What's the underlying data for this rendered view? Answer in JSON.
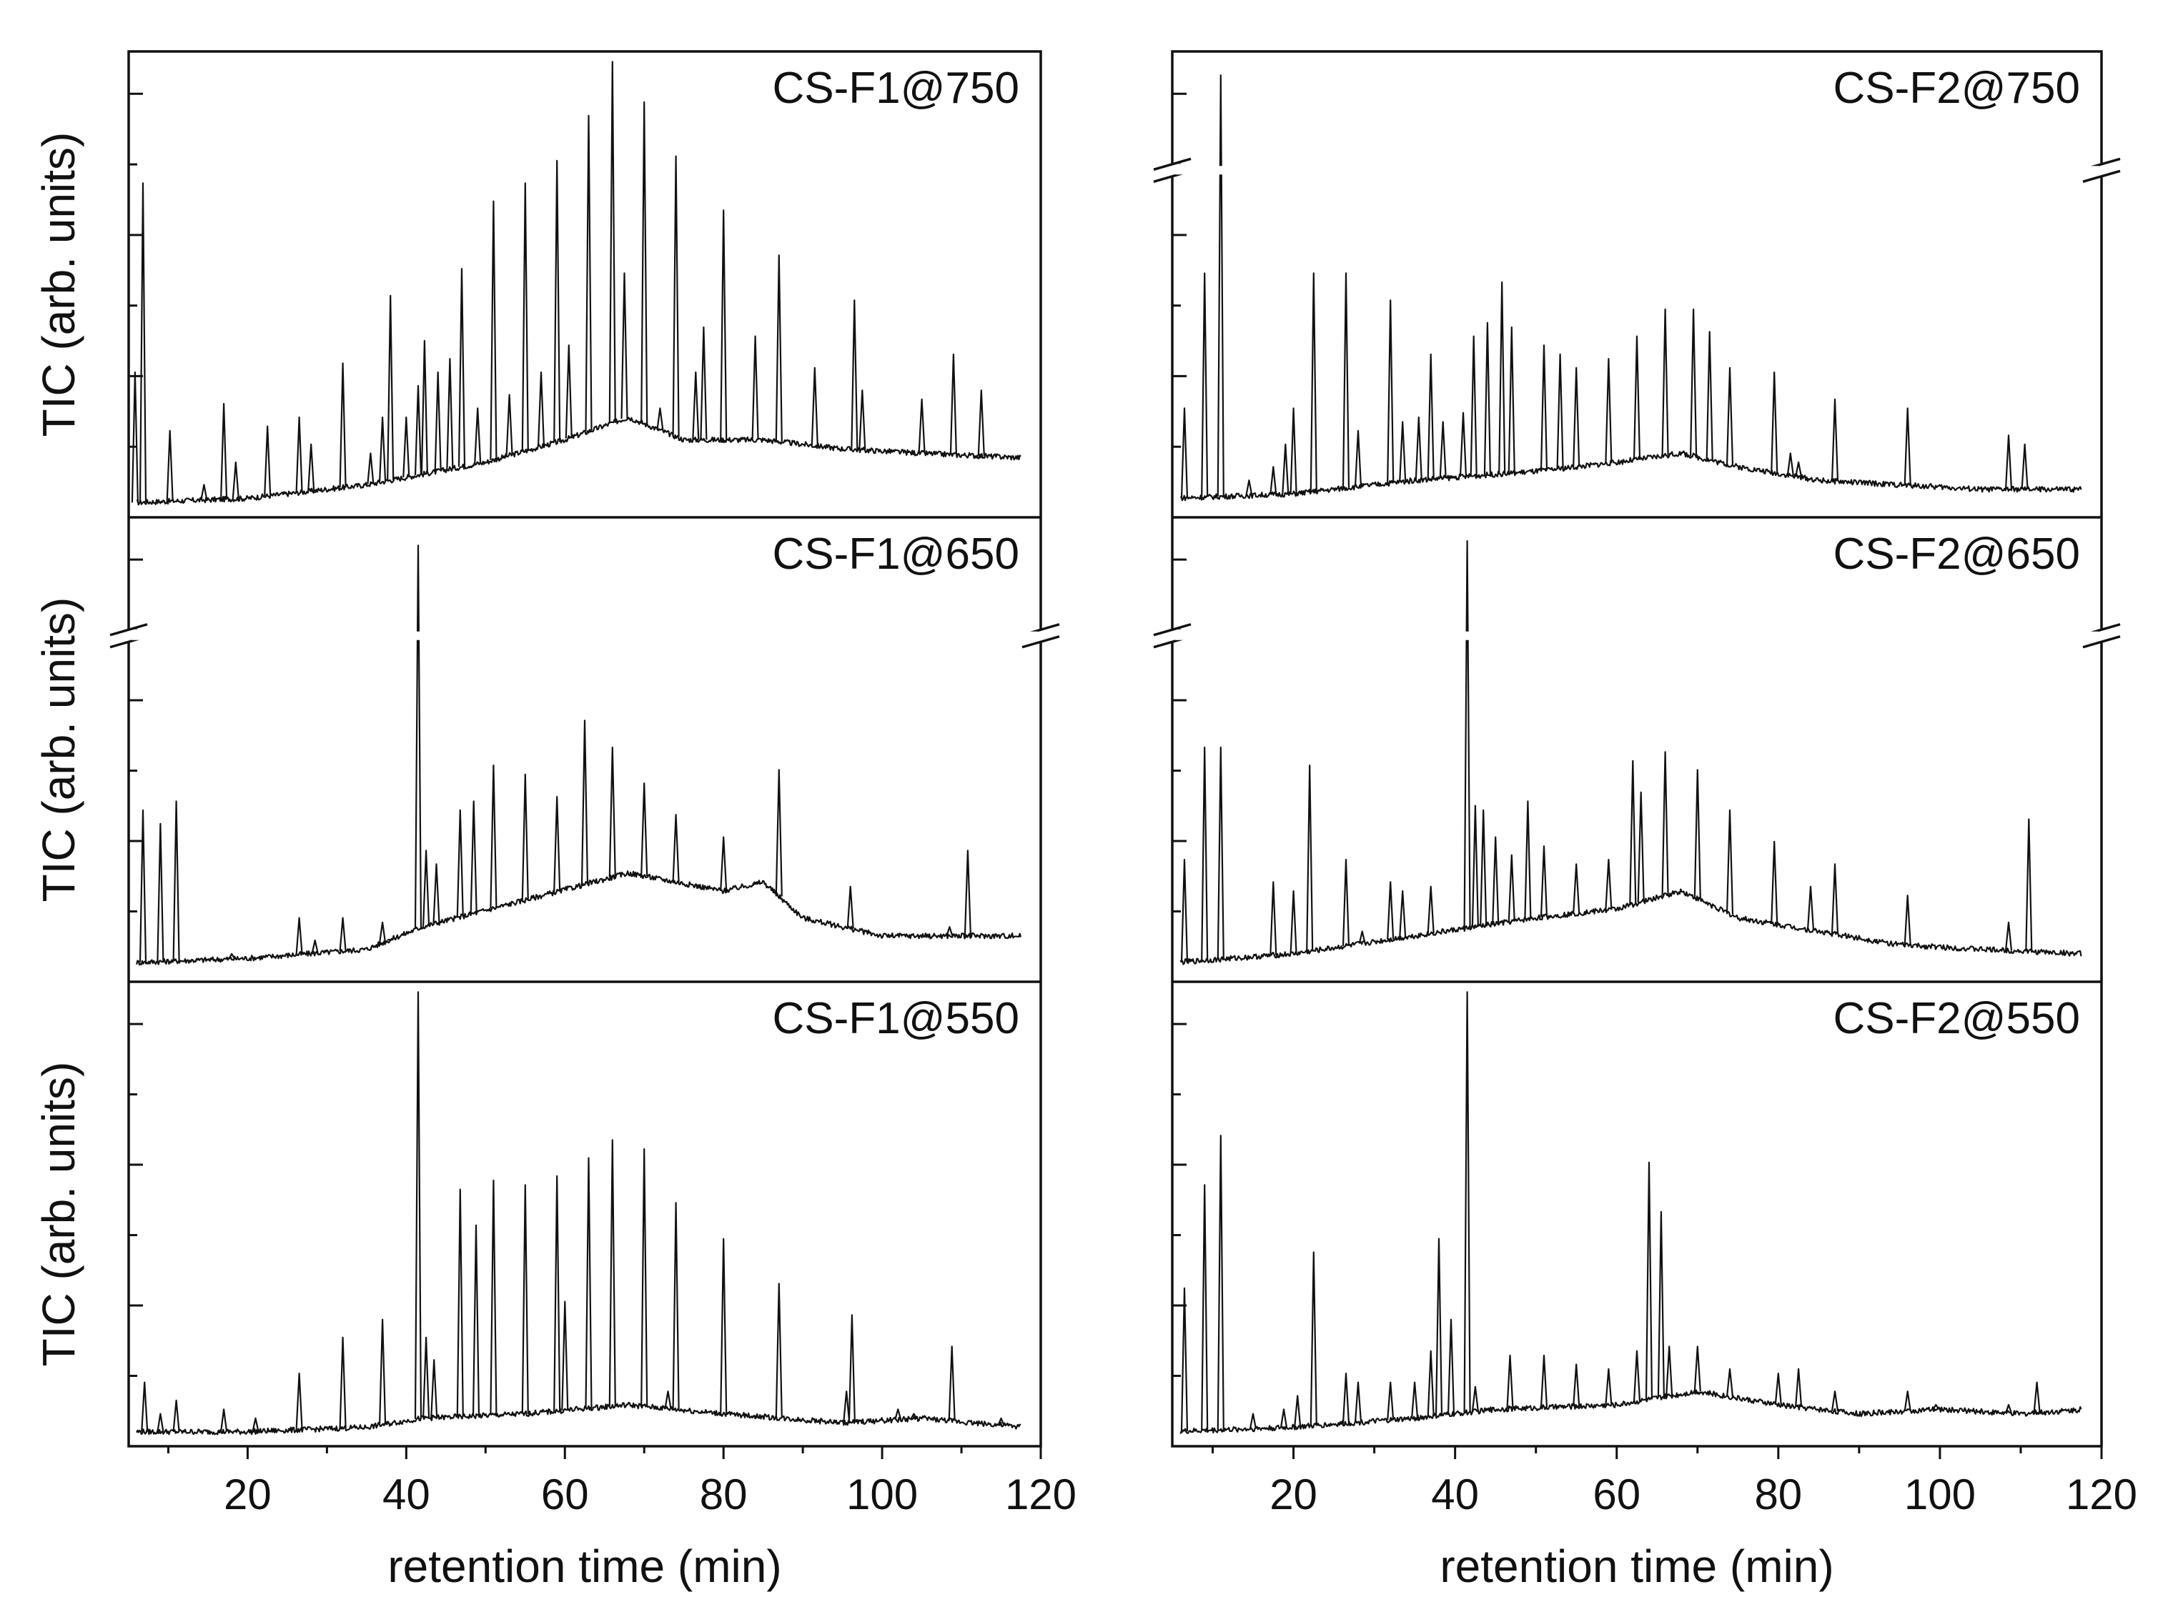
{
  "chart_data": [
    {
      "type": "line",
      "id": "cs-f1-750",
      "title": "CS-F1@750",
      "ylabel": "TIC (arb. units)",
      "xlabel": "retention time (min)",
      "xlim": [
        5,
        120
      ],
      "ylim": [
        0,
        1
      ],
      "xticks": [
        "20",
        "40",
        "60",
        "80",
        "100",
        "120"
      ],
      "axis_break": false,
      "baseline": [
        [
          5,
          0.01
        ],
        [
          20,
          0.02
        ],
        [
          35,
          0.05
        ],
        [
          50,
          0.1
        ],
        [
          60,
          0.15
        ],
        [
          68,
          0.2
        ],
        [
          75,
          0.15
        ],
        [
          85,
          0.15
        ],
        [
          95,
          0.13
        ],
        [
          105,
          0.12
        ],
        [
          118,
          0.11
        ]
      ],
      "peaks": [
        [
          5.8,
          0.3
        ],
        [
          6.8,
          0.72
        ],
        [
          10.2,
          0.17
        ],
        [
          14.5,
          0.05
        ],
        [
          17.0,
          0.23
        ],
        [
          18.5,
          0.1
        ],
        [
          22.5,
          0.18
        ],
        [
          26.5,
          0.2
        ],
        [
          28.0,
          0.14
        ],
        [
          32.0,
          0.32
        ],
        [
          35.5,
          0.12
        ],
        [
          37.0,
          0.2
        ],
        [
          38.0,
          0.47
        ],
        [
          40.0,
          0.2
        ],
        [
          41.5,
          0.27
        ],
        [
          42.3,
          0.37
        ],
        [
          44.0,
          0.3
        ],
        [
          45.5,
          0.33
        ],
        [
          47.0,
          0.53
        ],
        [
          49.0,
          0.22
        ],
        [
          51.0,
          0.68
        ],
        [
          53.0,
          0.25
        ],
        [
          55.0,
          0.72
        ],
        [
          57.0,
          0.3
        ],
        [
          59.0,
          0.77
        ],
        [
          60.5,
          0.36
        ],
        [
          63.0,
          0.87
        ],
        [
          66.0,
          0.99
        ],
        [
          67.5,
          0.52
        ],
        [
          70.0,
          0.9
        ],
        [
          72.0,
          0.22
        ],
        [
          74.0,
          0.78
        ],
        [
          76.5,
          0.3
        ],
        [
          77.5,
          0.4
        ],
        [
          80.0,
          0.66
        ],
        [
          84.0,
          0.38
        ],
        [
          87.0,
          0.56
        ],
        [
          91.5,
          0.31
        ],
        [
          96.5,
          0.46
        ],
        [
          97.5,
          0.26
        ],
        [
          105.0,
          0.24
        ],
        [
          109.0,
          0.34
        ],
        [
          112.5,
          0.26
        ]
      ]
    },
    {
      "type": "line",
      "id": "cs-f1-650",
      "title": "CS-F1@650",
      "ylabel": "TIC (arb. units)",
      "xlabel": "retention time (min)",
      "xlim": [
        5,
        120
      ],
      "ylim": [
        0,
        1
      ],
      "xticks": [
        "20",
        "40",
        "60",
        "80",
        "100",
        "120"
      ],
      "axis_break": true,
      "baseline": [
        [
          5,
          0.02
        ],
        [
          20,
          0.03
        ],
        [
          35,
          0.05
        ],
        [
          42,
          0.1
        ],
        [
          55,
          0.16
        ],
        [
          68,
          0.22
        ],
        [
          80,
          0.18
        ],
        [
          85,
          0.2
        ],
        [
          90,
          0.12
        ],
        [
          100,
          0.08
        ],
        [
          118,
          0.08
        ]
      ],
      "peaks": [
        [
          6.8,
          0.36
        ],
        [
          9.0,
          0.33
        ],
        [
          11.0,
          0.38
        ],
        [
          18.0,
          0.04
        ],
        [
          26.5,
          0.12
        ],
        [
          28.5,
          0.07
        ],
        [
          32.0,
          0.12
        ],
        [
          37.0,
          0.11
        ],
        [
          38.0,
          0.07
        ],
        [
          41.5,
          0.95
        ],
        [
          42.5,
          0.27
        ],
        [
          43.8,
          0.24
        ],
        [
          46.8,
          0.36
        ],
        [
          48.5,
          0.38
        ],
        [
          51.0,
          0.46
        ],
        [
          55.0,
          0.44
        ],
        [
          59.0,
          0.39
        ],
        [
          62.5,
          0.56
        ],
        [
          66.0,
          0.5
        ],
        [
          70.0,
          0.42
        ],
        [
          74.0,
          0.35
        ],
        [
          80.0,
          0.3
        ],
        [
          84.0,
          0.12
        ],
        [
          87.0,
          0.45
        ],
        [
          96.0,
          0.19
        ],
        [
          108.5,
          0.1
        ],
        [
          110.8,
          0.27
        ],
        [
          112.0,
          0.06
        ]
      ]
    },
    {
      "type": "line",
      "id": "cs-f1-550",
      "title": "CS-F1@550",
      "ylabel": "TIC (arb. units)",
      "xlabel": "retention time (min)",
      "xlim": [
        5,
        120
      ],
      "ylim": [
        0,
        1
      ],
      "xticks": [
        "20",
        "40",
        "60",
        "80",
        "100",
        "120"
      ],
      "axis_break": false,
      "baseline": [
        [
          5,
          0.01
        ],
        [
          20,
          0.01
        ],
        [
          35,
          0.02
        ],
        [
          42,
          0.04
        ],
        [
          55,
          0.05
        ],
        [
          68,
          0.07
        ],
        [
          80,
          0.05
        ],
        [
          95,
          0.03
        ],
        [
          105,
          0.04
        ],
        [
          118,
          0.02
        ]
      ],
      "peaks": [
        [
          7.0,
          0.12
        ],
        [
          9.0,
          0.05
        ],
        [
          11.0,
          0.08
        ],
        [
          17.0,
          0.06
        ],
        [
          21.0,
          0.04
        ],
        [
          26.5,
          0.14
        ],
        [
          32.0,
          0.22
        ],
        [
          37.0,
          0.26
        ],
        [
          41.5,
          0.99
        ],
        [
          42.5,
          0.22
        ],
        [
          43.5,
          0.17
        ],
        [
          46.8,
          0.55
        ],
        [
          48.8,
          0.47
        ],
        [
          51.0,
          0.57
        ],
        [
          55.0,
          0.56
        ],
        [
          59.0,
          0.58
        ],
        [
          60.0,
          0.3
        ],
        [
          63.0,
          0.62
        ],
        [
          66.0,
          0.66
        ],
        [
          70.0,
          0.64
        ],
        [
          73.0,
          0.1
        ],
        [
          74.0,
          0.52
        ],
        [
          80.0,
          0.44
        ],
        [
          84.0,
          0.04
        ],
        [
          87.0,
          0.34
        ],
        [
          95.5,
          0.1
        ],
        [
          96.2,
          0.27
        ],
        [
          102.0,
          0.06
        ],
        [
          104.0,
          0.05
        ],
        [
          108.8,
          0.2
        ],
        [
          115.0,
          0.04
        ]
      ]
    },
    {
      "type": "line",
      "id": "cs-f2-750",
      "title": "CS-F2@750",
      "ylabel": "TIC (arb. units)",
      "xlabel": "retention time (min)",
      "xlim": [
        5,
        120
      ],
      "ylim": [
        0,
        1
      ],
      "xticks": [
        "20",
        "40",
        "60",
        "80",
        "100",
        "120"
      ],
      "axis_break": true,
      "baseline": [
        [
          5,
          0.02
        ],
        [
          20,
          0.03
        ],
        [
          35,
          0.06
        ],
        [
          50,
          0.08
        ],
        [
          60,
          0.1
        ],
        [
          68,
          0.12
        ],
        [
          75,
          0.09
        ],
        [
          85,
          0.06
        ],
        [
          95,
          0.05
        ],
        [
          105,
          0.04
        ],
        [
          118,
          0.04
        ]
      ],
      "peaks": [
        [
          6.5,
          0.22
        ],
        [
          9.0,
          0.52
        ],
        [
          11.0,
          0.96
        ],
        [
          14.5,
          0.06
        ],
        [
          17.5,
          0.09
        ],
        [
          19.0,
          0.14
        ],
        [
          20.0,
          0.22
        ],
        [
          22.5,
          0.52
        ],
        [
          26.5,
          0.52
        ],
        [
          28.0,
          0.17
        ],
        [
          32.0,
          0.46
        ],
        [
          33.5,
          0.19
        ],
        [
          35.5,
          0.2
        ],
        [
          37.0,
          0.34
        ],
        [
          38.5,
          0.19
        ],
        [
          41.0,
          0.21
        ],
        [
          42.3,
          0.38
        ],
        [
          44.0,
          0.41
        ],
        [
          45.8,
          0.5
        ],
        [
          47.0,
          0.4
        ],
        [
          51.0,
          0.36
        ],
        [
          53.0,
          0.34
        ],
        [
          55.0,
          0.31
        ],
        [
          59.0,
          0.33
        ],
        [
          62.5,
          0.38
        ],
        [
          66.0,
          0.44
        ],
        [
          69.5,
          0.44
        ],
        [
          71.5,
          0.39
        ],
        [
          74.0,
          0.31
        ],
        [
          79.5,
          0.3
        ],
        [
          81.5,
          0.12
        ],
        [
          82.5,
          0.1
        ],
        [
          87.0,
          0.24
        ],
        [
          96.0,
          0.22
        ],
        [
          108.5,
          0.16
        ],
        [
          110.5,
          0.14
        ]
      ]
    },
    {
      "type": "line",
      "id": "cs-f2-650",
      "title": "CS-F2@650",
      "ylabel": "TIC (arb. units)",
      "xlabel": "retention time (min)",
      "xlim": [
        5,
        120
      ],
      "ylim": [
        0,
        1
      ],
      "xticks": [
        "20",
        "40",
        "60",
        "80",
        "100",
        "120"
      ],
      "axis_break": true,
      "baseline": [
        [
          5,
          0.02
        ],
        [
          20,
          0.04
        ],
        [
          35,
          0.08
        ],
        [
          50,
          0.12
        ],
        [
          60,
          0.14
        ],
        [
          68,
          0.18
        ],
        [
          75,
          0.12
        ],
        [
          85,
          0.09
        ],
        [
          95,
          0.06
        ],
        [
          105,
          0.05
        ],
        [
          118,
          0.04
        ]
      ],
      "peaks": [
        [
          6.5,
          0.25
        ],
        [
          9.0,
          0.5
        ],
        [
          11.0,
          0.5
        ],
        [
          17.5,
          0.2
        ],
        [
          20.0,
          0.18
        ],
        [
          22.0,
          0.46
        ],
        [
          26.5,
          0.25
        ],
        [
          28.5,
          0.09
        ],
        [
          32.0,
          0.2
        ],
        [
          33.5,
          0.18
        ],
        [
          37.0,
          0.19
        ],
        [
          41.5,
          0.96
        ],
        [
          42.5,
          0.37
        ],
        [
          43.5,
          0.36
        ],
        [
          45.0,
          0.3
        ],
        [
          47.0,
          0.26
        ],
        [
          49.0,
          0.38
        ],
        [
          51.0,
          0.28
        ],
        [
          55.0,
          0.24
        ],
        [
          59.0,
          0.25
        ],
        [
          62.0,
          0.47
        ],
        [
          63.0,
          0.4
        ],
        [
          66.0,
          0.49
        ],
        [
          70.0,
          0.45
        ],
        [
          74.0,
          0.36
        ],
        [
          79.5,
          0.29
        ],
        [
          84.0,
          0.19
        ],
        [
          87.0,
          0.24
        ],
        [
          96.0,
          0.17
        ],
        [
          108.5,
          0.11
        ],
        [
          111.0,
          0.34
        ]
      ]
    },
    {
      "type": "line",
      "id": "cs-f2-550",
      "title": "CS-F2@550",
      "ylabel": "TIC (arb. units)",
      "xlabel": "retention time (min)",
      "xlim": [
        5,
        120
      ],
      "ylim": [
        0,
        1
      ],
      "xticks": [
        "20",
        "40",
        "60",
        "80",
        "100",
        "120"
      ],
      "axis_break": false,
      "baseline": [
        [
          5,
          0.01
        ],
        [
          20,
          0.02
        ],
        [
          35,
          0.04
        ],
        [
          45,
          0.06
        ],
        [
          60,
          0.07
        ],
        [
          70,
          0.1
        ],
        [
          80,
          0.07
        ],
        [
          90,
          0.05
        ],
        [
          100,
          0.06
        ],
        [
          110,
          0.05
        ],
        [
          118,
          0.06
        ]
      ],
      "peaks": [
        [
          6.5,
          0.33
        ],
        [
          9.0,
          0.56
        ],
        [
          11.0,
          0.67
        ],
        [
          15.0,
          0.05
        ],
        [
          18.8,
          0.06
        ],
        [
          20.5,
          0.09
        ],
        [
          22.5,
          0.41
        ],
        [
          26.5,
          0.14
        ],
        [
          28.0,
          0.12
        ],
        [
          32.0,
          0.12
        ],
        [
          35.0,
          0.12
        ],
        [
          37.0,
          0.19
        ],
        [
          38.0,
          0.44
        ],
        [
          39.5,
          0.26
        ],
        [
          41.5,
          0.99
        ],
        [
          42.5,
          0.11
        ],
        [
          46.8,
          0.18
        ],
        [
          51.0,
          0.18
        ],
        [
          55.0,
          0.16
        ],
        [
          59.0,
          0.15
        ],
        [
          62.5,
          0.19
        ],
        [
          64.0,
          0.61
        ],
        [
          65.5,
          0.5
        ],
        [
          66.5,
          0.2
        ],
        [
          70.0,
          0.2
        ],
        [
          74.0,
          0.15
        ],
        [
          80.0,
          0.14
        ],
        [
          82.5,
          0.15
        ],
        [
          87.0,
          0.1
        ],
        [
          96.0,
          0.1
        ],
        [
          99.5,
          0.07
        ],
        [
          108.5,
          0.07
        ],
        [
          112.0,
          0.12
        ]
      ]
    }
  ]
}
